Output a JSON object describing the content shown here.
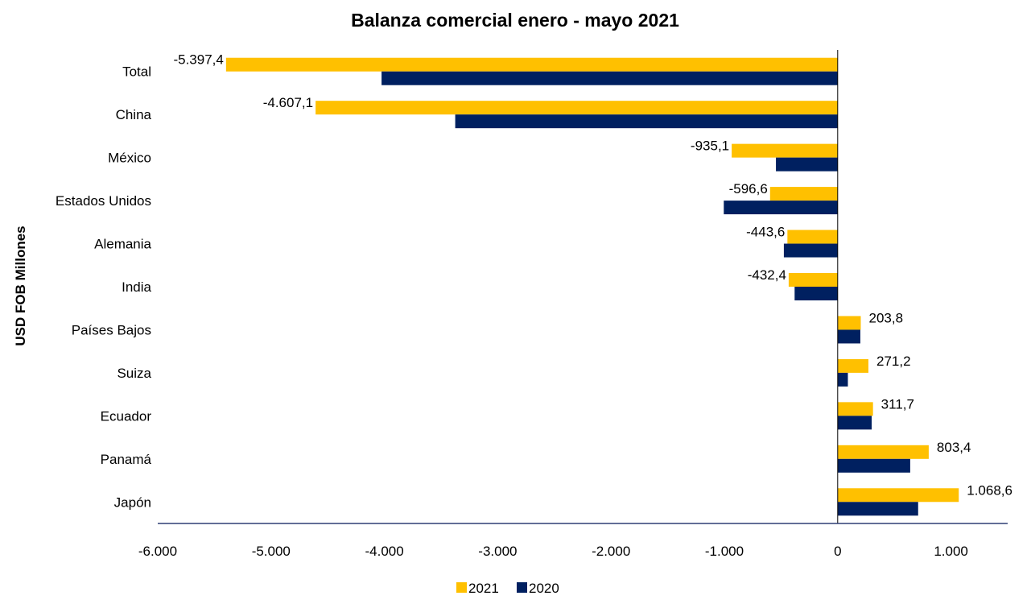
{
  "chart_data": {
    "type": "bar",
    "orientation": "horizontal",
    "title": "Balanza comercial enero - mayo 2021",
    "ylabel": "USD FOB Millones",
    "xlabel": "",
    "categories": [
      "Total",
      "China",
      "México",
      "Estados Unidos",
      "Alemania",
      "India",
      "Países Bajos",
      "Suiza",
      "Ecuador",
      "Panamá",
      "Japón"
    ],
    "series": [
      {
        "name": "2021",
        "color": "#FFC000",
        "values": [
          -5397.4,
          -4607.1,
          -935.1,
          -596.6,
          -443.6,
          -432.4,
          203.8,
          271.2,
          311.7,
          803.4,
          1068.6
        ],
        "data_labels": [
          "-5.397,4",
          "-4.607,1",
          "-935,1",
          "-596,6",
          "-443,6",
          "-432,4",
          "203,8",
          "271,2",
          "311,7",
          "803,4",
          "1.068,6"
        ]
      },
      {
        "name": "2020",
        "color": "#002060",
        "values": [
          -4025,
          -3375,
          -545,
          -1005,
          -475,
          -380,
          200,
          90,
          300,
          640,
          710
        ]
      }
    ],
    "xlim": [
      -6000,
      1500
    ],
    "xticks": [
      -6000,
      -5000,
      -4000,
      -3000,
      -2000,
      -1000,
      0,
      1000
    ],
    "xtick_labels": [
      "-6.000",
      "-5.000",
      "-4.000",
      "-3.000",
      "-2.000",
      "-1.000",
      "0",
      "1.000"
    ],
    "grid": false,
    "legend_position": "bottom"
  }
}
